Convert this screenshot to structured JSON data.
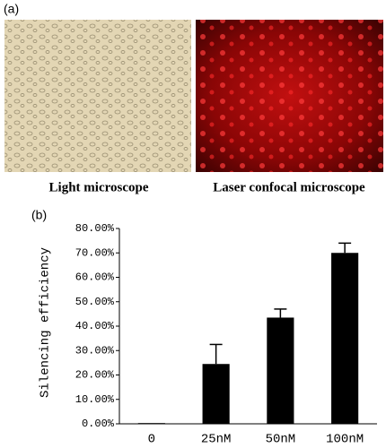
{
  "panel_a": {
    "label": "(a)",
    "captions": [
      "Light microscope",
      "Laser confocal microscope"
    ]
  },
  "chart_data": {
    "type": "bar",
    "panel_label": "(b)",
    "ylabel": "Silencing efficiency",
    "categories": [
      "0",
      "25nM",
      "50nM",
      "100nM"
    ],
    "values": [
      0.3,
      24.5,
      43.5,
      70
    ],
    "errors": [
      0,
      8,
      3.5,
      4
    ],
    "color": "#000000",
    "ylim": [
      0,
      80
    ],
    "yticks": [
      {
        "value": 0,
        "label": "0.00%"
      },
      {
        "value": 10,
        "label": "10.00%"
      },
      {
        "value": 20,
        "label": "20.00%"
      },
      {
        "value": 30,
        "label": "30.00%"
      },
      {
        "value": 40,
        "label": "40.00%"
      },
      {
        "value": 50,
        "label": "50.00%"
      },
      {
        "value": 60,
        "label": "60.00%"
      },
      {
        "value": 70,
        "label": "70.00%"
      },
      {
        "value": 80,
        "label": "80.00%"
      }
    ]
  }
}
